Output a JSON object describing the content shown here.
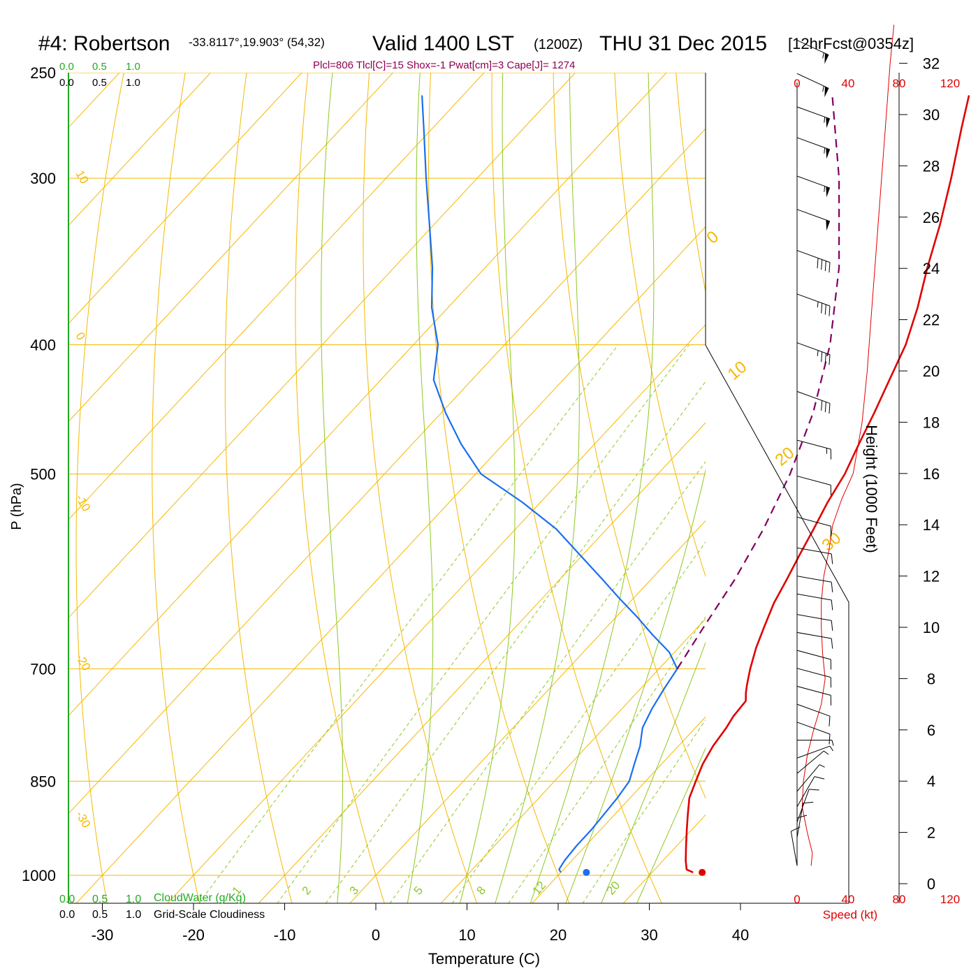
{
  "header": {
    "station": "#4: Robertson",
    "coords": "-33.8117°,19.903° (54,32)",
    "valid": "Valid 1400 LST",
    "utc": "(1200Z)",
    "date": "THU 31 Dec 2015",
    "forecast": "[12hrFcst@0354z]",
    "indices": "Plcl=806 Tlcl[C]=15 Shox=-1 Pwat[cm]=3 Cape[J]= 1274"
  },
  "colors": {
    "isobar": "#f5b800",
    "dry_adiabat": "#f5b800",
    "isotherm": "#f5b800",
    "moist_adiabat": "#8cc820",
    "mixing_ratio": "#8cc820",
    "temperature": "#e00000",
    "dewpoint": "#1a6ef0",
    "parcel": "#800060",
    "wind_speed": "#e00000",
    "cloud_water": "#22aa22",
    "title_indices": "#900050"
  },
  "scales": {
    "cloud_water_top": [
      "0.0",
      "0.5",
      "1.0"
    ],
    "cloudiness_top": [
      "0.0",
      "0.5",
      "1.0"
    ],
    "cloud_water_bottom": [
      "0.0",
      "0.5",
      "1.0"
    ],
    "cloudiness_bottom": [
      "0.0",
      "0.5",
      "1.0"
    ],
    "cloud_water_label": "CloudWater (g/Kg)",
    "cloudiness_label": "Grid-Scale Cloudiness",
    "speed_ticks": [
      "0",
      "40",
      "80",
      "120"
    ],
    "speed_label": "Speed (kt)"
  },
  "chart_data": {
    "type": "line",
    "title": "#4: Robertson",
    "xlabel": "Temperature (C)",
    "ylabel": "P (hPa)",
    "y2label": "Height (1000 Feet)",
    "x_ticks": [
      "-30",
      "-20",
      "-10",
      "0",
      "10",
      "20",
      "30",
      "40"
    ],
    "y_ticks": [
      "250",
      "300",
      "400",
      "500",
      "700",
      "850",
      "1000"
    ],
    "height_ticks": [
      "0",
      "2",
      "4",
      "6",
      "8",
      "10",
      "12",
      "14",
      "16",
      "18",
      "20",
      "22",
      "24",
      "26",
      "28",
      "30",
      "32"
    ],
    "theta_labels": [
      "10",
      "0",
      "-10",
      "-20",
      "-30"
    ],
    "isotherm_labels": [
      "0",
      "10",
      "20",
      "30"
    ],
    "mixing_ratio_labels": [
      "1",
      "2",
      "3",
      "5",
      "8",
      "12",
      "20"
    ],
    "mixing_ratios": [
      1,
      2,
      3,
      5,
      8,
      12,
      20
    ],
    "moist_adiabat_bases": [
      -4,
      4,
      10,
      14,
      18,
      22,
      26,
      30
    ],
    "series": [
      {
        "name": "Temperature",
        "p": [
          995,
          990,
          975,
          950,
          925,
          900,
          875,
          850,
          825,
          800,
          775,
          760,
          750,
          740,
          730,
          720,
          700,
          675,
          650,
          625,
          600,
          575,
          550,
          525,
          500,
          475,
          450,
          425,
          400,
          375,
          350,
          325,
          300,
          275,
          260
        ],
        "t": [
          34.5,
          33.5,
          32.5,
          31.0,
          29.5,
          28.0,
          26.5,
          25.5,
          24.5,
          23.8,
          23.4,
          23.0,
          22.9,
          22.8,
          22.0,
          21.3,
          20.0,
          18.5,
          17.2,
          15.9,
          14.9,
          13.8,
          12.7,
          11.5,
          10.5,
          9.0,
          7.5,
          5.8,
          4.0,
          1.5,
          -1.5,
          -4.5,
          -8.0,
          -12.0,
          -14.5
        ]
      },
      {
        "name": "Dewpoint",
        "p": [
          995,
          990,
          975,
          950,
          925,
          900,
          875,
          850,
          825,
          800,
          775,
          750,
          725,
          700,
          680,
          660,
          640,
          620,
          600,
          575,
          550,
          525,
          500,
          475,
          450,
          425,
          400,
          375,
          350,
          325,
          300,
          275,
          260
        ],
        "t": [
          20.0,
          19.5,
          19.2,
          19.0,
          19.0,
          18.8,
          18.6,
          18.2,
          17.0,
          15.8,
          14.2,
          13.3,
          12.6,
          12.0,
          9.4,
          5.8,
          2.3,
          -1.5,
          -5.3,
          -10.3,
          -15.5,
          -22.0,
          -29.4,
          -34.6,
          -39.5,
          -44.2,
          -47.3,
          -51.8,
          -55.8,
          -60.5,
          -65.6,
          -71.0,
          -74.5
        ]
      },
      {
        "name": "Parcel",
        "p": [
          700,
          650,
          600,
          550,
          500,
          450,
          400,
          350,
          300,
          260
        ],
        "t": [
          12.0,
          10.6,
          9.2,
          7.2,
          4.5,
          0.8,
          -4.3,
          -11.2,
          -20.3,
          -29.5
        ]
      }
    ],
    "surface_points": [
      {
        "name": "Surface temperature",
        "p": 995,
        "t": 35.5
      },
      {
        "name": "Surface dewpoint",
        "p": 995,
        "t": 22.8
      }
    ],
    "wind_speed_profile": {
      "height_kft": [
        0.7,
        1.2,
        2.0,
        3.0,
        4.0,
        5.0,
        6.0,
        7.0,
        8.0,
        9.0,
        10.0,
        11.0,
        12.0,
        13.0,
        14.0,
        15.0,
        16.0,
        18.0,
        20.0,
        22.0,
        24.0,
        26.0,
        28.0,
        30.0,
        32.0,
        33.5
      ],
      "speed_kt": [
        11,
        12,
        8,
        4,
        5,
        8,
        13,
        19,
        22,
        20,
        19,
        19,
        21,
        25,
        28,
        35,
        44,
        51,
        55,
        58,
        61,
        64,
        67,
        70,
        73,
        76
      ]
    },
    "wind_barbs": [
      {
        "height_kft": 32.9,
        "dir": 295,
        "speed": 55
      },
      {
        "height_kft": 31.6,
        "dir": 295,
        "speed": 55
      },
      {
        "height_kft": 30.3,
        "dir": 290,
        "speed": 55
      },
      {
        "height_kft": 29.1,
        "dir": 290,
        "speed": 55
      },
      {
        "height_kft": 27.6,
        "dir": 290,
        "speed": 55
      },
      {
        "height_kft": 26.3,
        "dir": 290,
        "speed": 50
      },
      {
        "height_kft": 24.7,
        "dir": 290,
        "speed": 40
      },
      {
        "height_kft": 23.0,
        "dir": 290,
        "speed": 35
      },
      {
        "height_kft": 21.1,
        "dir": 290,
        "speed": 35
      },
      {
        "height_kft": 19.2,
        "dir": 290,
        "speed": 30
      },
      {
        "height_kft": 17.3,
        "dir": 285,
        "speed": 15
      },
      {
        "height_kft": 15.9,
        "dir": 285,
        "speed": 10
      },
      {
        "height_kft": 14.3,
        "dir": 285,
        "speed": 10
      },
      {
        "height_kft": 13.1,
        "dir": 280,
        "speed": 10
      },
      {
        "height_kft": 12.0,
        "dir": 280,
        "speed": 10
      },
      {
        "height_kft": 11.3,
        "dir": 280,
        "speed": 10
      },
      {
        "height_kft": 10.5,
        "dir": 280,
        "speed": 10
      },
      {
        "height_kft": 9.8,
        "dir": 280,
        "speed": 10
      },
      {
        "height_kft": 9.1,
        "dir": 285,
        "speed": 10
      },
      {
        "height_kft": 8.4,
        "dir": 285,
        "speed": 10
      },
      {
        "height_kft": 7.7,
        "dir": 285,
        "speed": 10
      },
      {
        "height_kft": 7.0,
        "dir": 290,
        "speed": 10
      },
      {
        "height_kft": 6.3,
        "dir": 290,
        "speed": 10
      },
      {
        "height_kft": 5.6,
        "dir": 270,
        "speed": 5
      },
      {
        "height_kft": 4.9,
        "dir": 250,
        "speed": 5
      },
      {
        "height_kft": 4.3,
        "dir": 230,
        "speed": 5
      },
      {
        "height_kft": 3.6,
        "dir": 220,
        "speed": 5
      },
      {
        "height_kft": 3.0,
        "dir": 210,
        "speed": 10
      },
      {
        "height_kft": 2.4,
        "dir": 200,
        "speed": 10
      },
      {
        "height_kft": 1.8,
        "dir": 190,
        "speed": 10
      },
      {
        "height_kft": 1.2,
        "dir": 180,
        "speed": 10
      },
      {
        "height_kft": 0.7,
        "dir": 170,
        "speed": 10
      }
    ],
    "grid": true
  }
}
